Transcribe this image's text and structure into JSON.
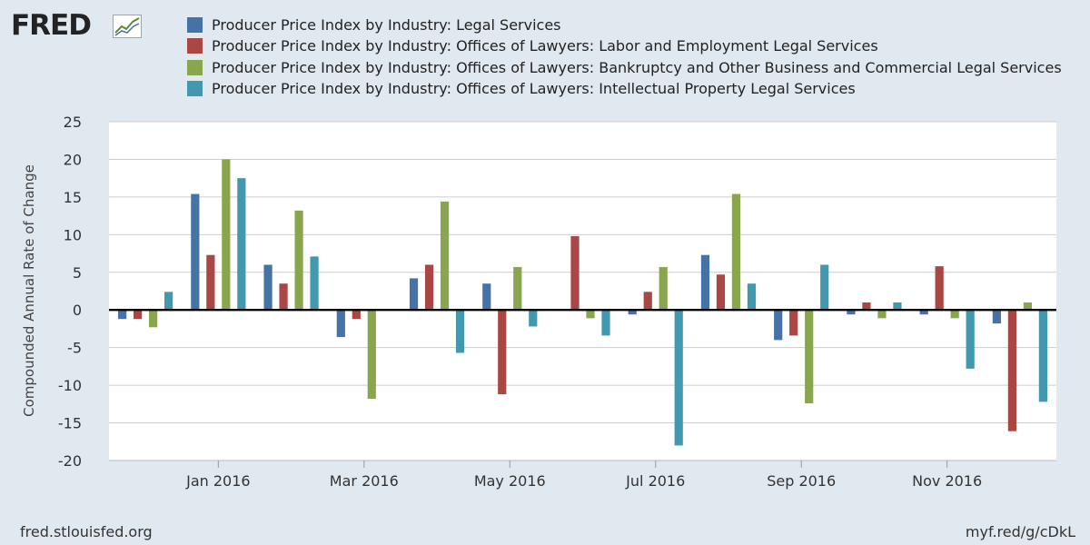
{
  "branding": {
    "logo_text": "FRED",
    "logo_icon": "line-chart-icon"
  },
  "footer": {
    "left": "fred.stlouisfed.org",
    "right": "myf.red/g/cDkL"
  },
  "chart_data": {
    "type": "bar",
    "title": "",
    "xlabel": "",
    "ylabel": "Compounded Annual Rate of Change",
    "ylim": [
      -20,
      25
    ],
    "yticks": [
      25,
      20,
      15,
      10,
      5,
      0,
      -5,
      -10,
      -15,
      -20
    ],
    "grid": true,
    "legend_position": "top",
    "categories": [
      "Dec 2015",
      "Jan 2016",
      "Feb 2016",
      "Mar 2016",
      "Apr 2016",
      "May 2016",
      "Jun 2016",
      "Jul 2016",
      "Aug 2016",
      "Sep 2016",
      "Oct 2016",
      "Nov 2016",
      "Dec 2016"
    ],
    "x_tick_labels": [
      {
        "label": "Jan 2016",
        "index": 1
      },
      {
        "label": "Mar 2016",
        "index": 3
      },
      {
        "label": "May 2016",
        "index": 5
      },
      {
        "label": "Jul 2016",
        "index": 7
      },
      {
        "label": "Sep 2016",
        "index": 9
      },
      {
        "label": "Nov 2016",
        "index": 11
      }
    ],
    "series": [
      {
        "name": "Producer Price Index by Industry: Legal Services",
        "color": "#4572a7",
        "values": [
          -1.2,
          15.4,
          6.0,
          -3.6,
          4.2,
          3.5,
          0.0,
          -0.6,
          7.3,
          -4.0,
          -0.6,
          -0.6,
          -1.8
        ]
      },
      {
        "name": "Producer Price Index by Industry: Offices of Lawyers: Labor and Employment Legal Services",
        "color": "#aa4643",
        "values": [
          -1.2,
          7.3,
          3.5,
          -1.2,
          6.0,
          -11.2,
          9.8,
          2.4,
          4.7,
          -3.4,
          1.0,
          5.8,
          -16.1
        ]
      },
      {
        "name": "Producer Price Index by Industry: Offices of Lawyers: Bankruptcy and Other Business and Commercial Legal Services",
        "color": "#89a54e",
        "values": [
          -2.3,
          20.0,
          13.2,
          -11.8,
          14.4,
          5.7,
          -1.1,
          5.7,
          15.4,
          -12.4,
          -1.1,
          -1.1,
          1.0
        ]
      },
      {
        "name": "Producer Price Index by Industry: Offices of Lawyers: Intellectual Property Legal Services",
        "color": "#4198af",
        "values": [
          2.4,
          17.5,
          7.1,
          0.0,
          -5.7,
          -2.2,
          -3.4,
          -18.0,
          3.5,
          6.0,
          1.0,
          -7.8,
          -12.2
        ]
      }
    ]
  }
}
